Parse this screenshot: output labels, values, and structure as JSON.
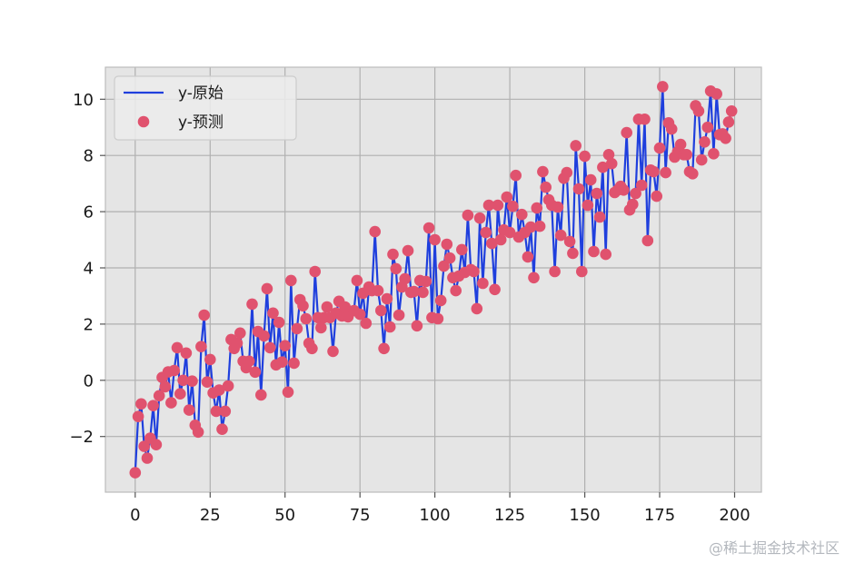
{
  "chart_data": {
    "type": "line",
    "x": [
      0,
      1,
      2,
      3,
      4,
      5,
      6,
      7,
      8,
      9,
      10,
      11,
      12,
      13,
      14,
      15,
      16,
      17,
      18,
      19,
      20,
      21,
      22,
      23,
      24,
      25,
      26,
      27,
      28,
      29,
      30,
      31,
      32,
      33,
      34,
      35,
      36,
      37,
      38,
      39,
      40,
      41,
      42,
      43,
      44,
      45,
      46,
      47,
      48,
      49,
      50,
      51,
      52,
      53,
      54,
      55,
      56,
      57,
      58,
      59,
      60,
      61,
      62,
      63,
      64,
      65,
      66,
      67,
      68,
      69,
      70,
      71,
      72,
      73,
      74,
      75,
      76,
      77,
      78,
      79,
      80,
      81,
      82,
      83,
      84,
      85,
      86,
      87,
      88,
      89,
      90,
      91,
      92,
      93,
      94,
      95,
      96,
      97,
      98,
      99,
      100,
      101,
      102,
      103,
      104,
      105,
      106,
      107,
      108,
      109,
      110,
      111,
      112,
      113,
      114,
      115,
      116,
      117,
      118,
      119,
      120,
      121,
      122,
      123,
      124,
      125,
      126,
      127,
      128,
      129,
      130,
      131,
      132,
      133,
      134,
      135,
      136,
      137,
      138,
      139,
      140,
      141,
      142,
      143,
      144,
      145,
      146,
      147,
      148,
      149,
      150,
      151,
      152,
      153,
      154,
      155,
      156,
      157,
      158,
      159,
      160,
      161,
      162,
      163,
      164,
      165,
      166,
      167,
      168,
      169,
      170,
      171,
      172,
      173,
      174,
      175,
      176,
      177,
      178,
      179,
      180,
      181,
      182,
      183,
      184,
      185,
      186,
      187,
      188,
      189,
      190,
      191,
      192,
      193,
      194,
      195,
      196,
      197,
      198,
      199
    ],
    "series": [
      {
        "name": "y-原始",
        "style": "line",
        "color": "#1f3fdd",
        "values": [
          -3.29,
          -1.29,
          -0.84,
          -2.35,
          -2.77,
          -2.06,
          -0.9,
          -2.29,
          -0.55,
          0.1,
          -0.23,
          0.3,
          -0.8,
          0.35,
          1.16,
          -0.48,
          0.0,
          0.97,
          -1.06,
          -0.03,
          -1.6,
          -1.84,
          1.2,
          2.32,
          -0.06,
          0.74,
          -0.45,
          -1.1,
          -0.35,
          -1.74,
          -1.1,
          -0.2,
          1.45,
          1.13,
          1.32,
          1.68,
          0.68,
          0.45,
          0.68,
          2.71,
          0.29,
          1.74,
          -0.52,
          1.58,
          3.26,
          1.16,
          2.39,
          0.55,
          2.06,
          0.65,
          1.23,
          -0.42,
          3.55,
          0.61,
          1.84,
          2.87,
          2.65,
          2.19,
          1.32,
          1.13,
          3.87,
          2.23,
          1.87,
          2.23,
          2.61,
          2.23,
          1.03,
          2.39,
          2.81,
          2.29,
          2.61,
          2.26,
          2.45,
          2.48,
          3.55,
          2.35,
          3.1,
          2.03,
          3.32,
          3.19,
          5.29,
          3.19,
          2.48,
          1.13,
          2.9,
          1.9,
          4.48,
          3.97,
          2.32,
          3.32,
          3.61,
          4.61,
          3.13,
          3.16,
          1.94,
          3.55,
          3.13,
          3.52,
          5.42,
          2.23,
          5.0,
          2.19,
          2.84,
          4.06,
          4.84,
          4.35,
          3.65,
          3.19,
          3.71,
          4.65,
          3.84,
          5.87,
          3.94,
          3.87,
          2.55,
          5.77,
          3.45,
          5.26,
          6.23,
          4.87,
          3.23,
          6.23,
          5.0,
          5.35,
          6.52,
          5.26,
          6.19,
          7.29,
          5.1,
          5.9,
          5.26,
          4.39,
          5.45,
          3.65,
          6.13,
          5.48,
          7.42,
          6.87,
          6.42,
          6.23,
          3.87,
          6.16,
          5.16,
          7.19,
          7.39,
          4.94,
          4.52,
          8.35,
          6.81,
          3.87,
          7.97,
          6.23,
          7.13,
          4.58,
          6.65,
          5.81,
          7.58,
          4.48,
          8.03,
          7.71,
          6.68,
          6.77,
          6.9,
          6.77,
          8.81,
          6.06,
          6.26,
          6.65,
          9.29,
          6.94,
          9.29,
          4.97,
          7.48,
          7.42,
          6.55,
          8.26,
          10.45,
          7.39,
          9.16,
          8.94,
          7.94,
          8.13,
          8.39,
          8.03,
          8.03,
          7.42,
          7.35,
          9.77,
          9.58,
          7.84,
          8.48,
          9.0,
          10.29,
          8.06,
          10.19,
          8.74,
          8.77,
          8.61,
          9.19,
          9.58
        ]
      },
      {
        "name": "y-预测",
        "style": "markers",
        "color": "#e0526e",
        "values": [
          -3.29,
          -1.29,
          -0.84,
          -2.35,
          -2.77,
          -2.06,
          -0.9,
          -2.29,
          -0.55,
          0.1,
          -0.23,
          0.3,
          -0.8,
          0.35,
          1.16,
          -0.48,
          0.0,
          0.97,
          -1.06,
          -0.03,
          -1.6,
          -1.84,
          1.2,
          2.32,
          -0.06,
          0.74,
          -0.45,
          -1.1,
          -0.35,
          -1.74,
          -1.1,
          -0.2,
          1.45,
          1.13,
          1.32,
          1.68,
          0.68,
          0.45,
          0.68,
          2.71,
          0.29,
          1.74,
          -0.52,
          1.58,
          3.26,
          1.16,
          2.39,
          0.55,
          2.06,
          0.65,
          1.23,
          -0.42,
          3.55,
          0.61,
          1.84,
          2.87,
          2.65,
          2.19,
          1.32,
          1.13,
          3.87,
          2.23,
          1.87,
          2.23,
          2.61,
          2.23,
          1.03,
          2.39,
          2.81,
          2.29,
          2.61,
          2.26,
          2.45,
          2.48,
          3.55,
          2.35,
          3.1,
          2.03,
          3.32,
          3.19,
          5.29,
          3.19,
          2.48,
          1.13,
          2.9,
          1.9,
          4.48,
          3.97,
          2.32,
          3.32,
          3.61,
          4.61,
          3.13,
          3.16,
          1.94,
          3.55,
          3.13,
          3.52,
          5.42,
          2.23,
          5.0,
          2.19,
          2.84,
          4.06,
          4.84,
          4.35,
          3.65,
          3.19,
          3.71,
          4.65,
          3.84,
          5.87,
          3.94,
          3.87,
          2.55,
          5.77,
          3.45,
          5.26,
          6.23,
          4.87,
          3.23,
          6.23,
          5.0,
          5.35,
          6.52,
          5.26,
          6.19,
          7.29,
          5.1,
          5.9,
          5.26,
          4.39,
          5.45,
          3.65,
          6.13,
          5.48,
          7.42,
          6.87,
          6.42,
          6.23,
          3.87,
          6.16,
          5.16,
          7.19,
          7.39,
          4.94,
          4.52,
          8.35,
          6.81,
          3.87,
          7.97,
          6.23,
          7.13,
          4.58,
          6.65,
          5.81,
          7.58,
          4.48,
          8.03,
          7.71,
          6.68,
          6.77,
          6.9,
          6.77,
          8.81,
          6.06,
          6.26,
          6.65,
          9.29,
          6.94,
          9.29,
          4.97,
          7.48,
          7.42,
          6.55,
          8.26,
          10.45,
          7.39,
          9.16,
          8.94,
          7.94,
          8.13,
          8.39,
          8.03,
          8.03,
          7.42,
          7.35,
          9.77,
          9.58,
          7.84,
          8.48,
          9.0,
          10.29,
          8.06,
          10.19,
          8.74,
          8.77,
          8.61,
          9.19,
          9.58
        ]
      }
    ],
    "xlim": [
      -9.95,
      208.95
    ],
    "ylim": [
      -3.98,
      11.14
    ],
    "xticks": [
      0,
      25,
      50,
      75,
      100,
      125,
      150,
      175,
      200
    ],
    "xtick_labels": [
      "0",
      "25",
      "50",
      "75",
      "100",
      "125",
      "150",
      "175",
      "200"
    ],
    "yticks": [
      -2,
      0,
      2,
      4,
      6,
      8,
      10
    ],
    "ytick_labels": [
      "−2",
      "0",
      "2",
      "4",
      "6",
      "8",
      "10"
    ],
    "grid": true,
    "legend": "top-left",
    "axes_background": "#e5e5e5",
    "grid_color": "#b0b0b0"
  },
  "watermark": "@稀土掘金技术社区"
}
